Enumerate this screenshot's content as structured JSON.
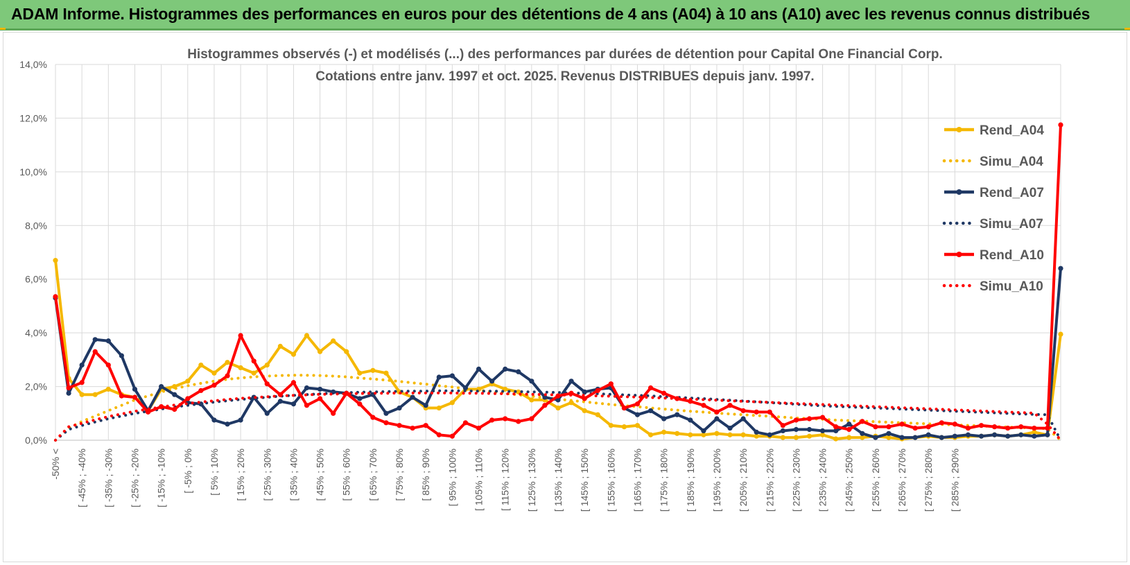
{
  "header": {
    "title": "ADAM Informe. Histogrammes des performances en euros pour des détentions de 4 ans (A04) à 10 ans (A10) avec les revenus connus distribués"
  },
  "chart_data": {
    "type": "line",
    "title_line1": "Histogrammes observés (-) et modélisés (...) des performances par durées de détention pour Capital One Financial Corp.",
    "title_line2": "Cotations entre janv. 1997 et oct. 2025.  Revenus DISTRIBUES depuis janv. 1997.",
    "xlabel": "",
    "ylabel": "",
    "ylim": [
      0,
      14
    ],
    "yticks": [
      "0,0%",
      "2,0%",
      "4,0%",
      "6,0%",
      "8,0%",
      "10,0%",
      "12,0%",
      "14,0%"
    ],
    "xticklabels": [
      "-50% <",
      "[ -45% ; -40%",
      "[ -35% ; -30%",
      "[ -25% ; -20%",
      "[ -15% ; -10%",
      "[ -5% ; 0%",
      "[ 5% ; 10%",
      "[ 15% ; 20%",
      "[ 25% ; 30%",
      "[ 35% ; 40%",
      "[ 45% ; 50%",
      "[ 55% ; 60%",
      "[ 65% ; 70%",
      "[ 75% ; 80%",
      "[ 85% ; 90%",
      "[ 95% ; 100%",
      "[ 105% ; 110%",
      "[ 115% ; 120%",
      "[ 125% ; 130%",
      "[ 135% ; 140%",
      "[ 145% ; 150%",
      "[ 155% ; 160%",
      "[ 165% ; 170%",
      "[ 175% ; 180%",
      "[ 185% ; 190%",
      "[ 195% ; 200%",
      "[ 205% ; 210%",
      "[ 215% ; 220%",
      "[ 225% ; 230%",
      "[ 235% ; 240%",
      "[ 245% ; 250%",
      "[ 255% ; 260%",
      "[ 265% ; 270%",
      "[ 275% ; 280%",
      "[ 285% ; 290%"
    ],
    "series": [
      {
        "name": "Rend_A04",
        "style": "solid",
        "color": "#f5b800",
        "values": [
          6.7,
          2.3,
          1.7,
          1.7,
          1.9,
          1.7,
          1.6,
          1.1,
          1.9,
          2.0,
          2.2,
          2.8,
          2.5,
          2.9,
          2.7,
          2.5,
          2.8,
          3.5,
          3.2,
          3.9,
          3.3,
          3.7,
          3.3,
          2.5,
          2.6,
          2.5,
          1.8,
          1.6,
          1.2,
          1.2,
          1.4,
          1.9,
          1.9,
          2.1,
          1.9,
          1.8,
          1.5,
          1.5,
          1.2,
          1.4,
          1.1,
          0.95,
          0.55,
          0.5,
          0.55,
          0.2,
          0.3,
          0.25,
          0.2,
          0.2,
          0.25,
          0.2,
          0.2,
          0.15,
          0.15,
          0.1,
          0.1,
          0.15,
          0.2,
          0.05,
          0.1,
          0.1,
          0.15,
          0.1,
          0.05,
          0.1,
          0.15,
          0.1,
          0.1,
          0.15,
          0.15,
          0.2,
          0.15,
          0.2,
          0.3,
          0.2,
          3.95
        ]
      },
      {
        "name": "Simu_A04",
        "style": "dotted",
        "color": "#f5b800",
        "values": [
          0.0,
          0.45,
          0.7,
          0.9,
          1.1,
          1.3,
          1.5,
          1.65,
          1.8,
          1.92,
          2.03,
          2.12,
          2.2,
          2.27,
          2.32,
          2.36,
          2.39,
          2.41,
          2.42,
          2.42,
          2.41,
          2.39,
          2.36,
          2.32,
          2.28,
          2.24,
          2.19,
          2.14,
          2.09,
          2.03,
          1.98,
          1.92,
          1.86,
          1.81,
          1.75,
          1.69,
          1.64,
          1.58,
          1.53,
          1.48,
          1.43,
          1.38,
          1.33,
          1.29,
          1.25,
          1.2,
          1.16,
          1.12,
          1.08,
          1.05,
          1.01,
          0.98,
          0.95,
          0.92,
          0.89,
          0.86,
          0.83,
          0.8,
          0.78,
          0.75,
          0.73,
          0.71,
          0.69,
          0.67,
          0.65,
          0.63,
          0.61,
          0.59,
          0.57,
          0.55,
          0.53,
          0.51,
          0.49,
          0.47,
          0.45,
          0.43,
          0.0
        ]
      },
      {
        "name": "Rend_A07",
        "style": "solid",
        "color": "#1f3864",
        "values": [
          5.3,
          1.75,
          2.8,
          3.75,
          3.7,
          3.15,
          1.9,
          1.1,
          2.0,
          1.7,
          1.4,
          1.35,
          0.75,
          0.6,
          0.75,
          1.6,
          1.0,
          1.45,
          1.35,
          1.95,
          1.9,
          1.8,
          1.75,
          1.55,
          1.7,
          1.0,
          1.2,
          1.6,
          1.3,
          2.35,
          2.4,
          1.95,
          2.65,
          2.2,
          2.65,
          2.55,
          2.2,
          1.6,
          1.5,
          2.2,
          1.8,
          1.9,
          1.95,
          1.2,
          0.95,
          1.1,
          0.8,
          0.95,
          0.75,
          0.35,
          0.8,
          0.45,
          0.8,
          0.3,
          0.2,
          0.35,
          0.4,
          0.4,
          0.35,
          0.35,
          0.6,
          0.25,
          0.1,
          0.25,
          0.1,
          0.1,
          0.2,
          0.1,
          0.15,
          0.2,
          0.15,
          0.2,
          0.15,
          0.2,
          0.15,
          0.2,
          6.4
        ]
      },
      {
        "name": "Simu_A07",
        "style": "dotted",
        "color": "#1f3864",
        "values": [
          0.0,
          0.4,
          0.55,
          0.68,
          0.8,
          0.9,
          1.0,
          1.08,
          1.16,
          1.24,
          1.3,
          1.36,
          1.42,
          1.47,
          1.52,
          1.56,
          1.6,
          1.64,
          1.67,
          1.7,
          1.73,
          1.75,
          1.77,
          1.79,
          1.8,
          1.81,
          1.82,
          1.83,
          1.83,
          1.84,
          1.84,
          1.84,
          1.83,
          1.83,
          1.82,
          1.81,
          1.8,
          1.79,
          1.78,
          1.76,
          1.75,
          1.73,
          1.71,
          1.69,
          1.67,
          1.65,
          1.62,
          1.6,
          1.57,
          1.55,
          1.52,
          1.49,
          1.46,
          1.43,
          1.4,
          1.37,
          1.34,
          1.31,
          1.28,
          1.26,
          1.24,
          1.22,
          1.2,
          1.18,
          1.16,
          1.14,
          1.12,
          1.1,
          1.08,
          1.06,
          1.04,
          1.02,
          1.0,
          0.98,
          0.96,
          0.95,
          0.0
        ]
      },
      {
        "name": "Rend_A10",
        "style": "solid",
        "color": "#ff0000",
        "values": [
          5.35,
          1.95,
          2.15,
          3.3,
          2.8,
          1.65,
          1.6,
          1.05,
          1.25,
          1.15,
          1.55,
          1.85,
          2.05,
          2.4,
          3.9,
          2.95,
          2.1,
          1.7,
          2.15,
          1.3,
          1.55,
          1.0,
          1.75,
          1.35,
          0.85,
          0.65,
          0.55,
          0.45,
          0.55,
          0.2,
          0.15,
          0.65,
          0.45,
          0.75,
          0.8,
          0.7,
          0.8,
          1.3,
          1.65,
          1.75,
          1.55,
          1.85,
          2.1,
          1.2,
          1.35,
          1.95,
          1.75,
          1.55,
          1.45,
          1.3,
          1.05,
          1.3,
          1.1,
          1.05,
          1.05,
          0.55,
          0.75,
          0.8,
          0.85,
          0.5,
          0.4,
          0.7,
          0.5,
          0.5,
          0.6,
          0.45,
          0.5,
          0.65,
          0.6,
          0.45,
          0.55,
          0.5,
          0.45,
          0.5,
          0.45,
          0.45,
          11.75
        ]
      },
      {
        "name": "Simu_A10",
        "style": "dotted",
        "color": "#ff0000",
        "values": [
          0.0,
          0.5,
          0.63,
          0.76,
          0.88,
          0.98,
          1.08,
          1.16,
          1.24,
          1.31,
          1.37,
          1.42,
          1.47,
          1.52,
          1.56,
          1.59,
          1.62,
          1.65,
          1.67,
          1.69,
          1.71,
          1.72,
          1.73,
          1.74,
          1.75,
          1.75,
          1.76,
          1.76,
          1.76,
          1.76,
          1.76,
          1.75,
          1.75,
          1.74,
          1.73,
          1.72,
          1.71,
          1.7,
          1.69,
          1.68,
          1.67,
          1.65,
          1.64,
          1.62,
          1.61,
          1.59,
          1.57,
          1.55,
          1.53,
          1.51,
          1.49,
          1.47,
          1.45,
          1.43,
          1.41,
          1.39,
          1.37,
          1.35,
          1.33,
          1.31,
          1.29,
          1.27,
          1.25,
          1.23,
          1.21,
          1.19,
          1.17,
          1.15,
          1.13,
          1.11,
          1.09,
          1.07,
          1.05,
          1.03,
          1.01,
          0.6,
          0.0
        ]
      }
    ],
    "legend": {
      "position": "right",
      "entries": [
        "Rend_A04",
        "Simu_A04",
        "Rend_A07",
        "Simu_A07",
        "Rend_A10",
        "Simu_A10"
      ]
    },
    "grid": true
  }
}
